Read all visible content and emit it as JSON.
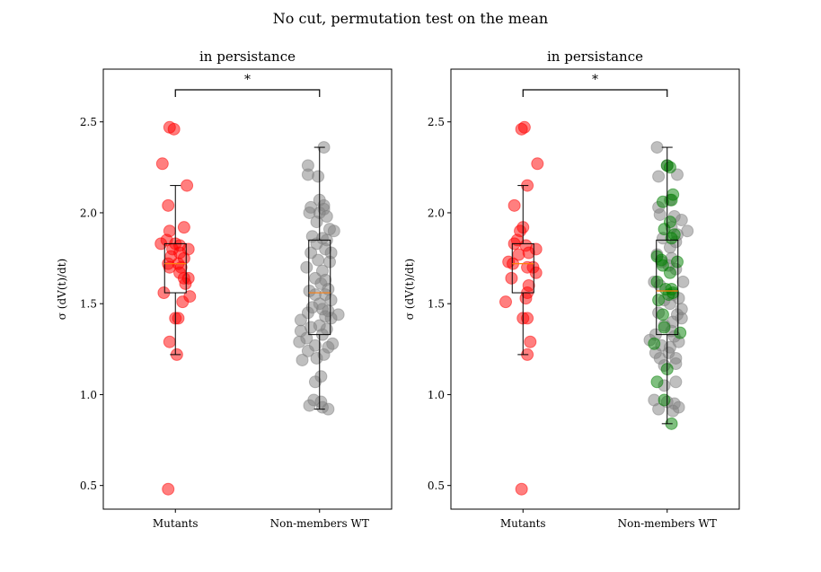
{
  "figure": {
    "title": "No cut, permutation test on the mean"
  },
  "colors": {
    "mutant": "#ff0000",
    "wt": "#808080",
    "wt_highlight": "#008000",
    "median": "#ff7f0e",
    "box": "#000000"
  },
  "chart_data": [
    {
      "type": "scatter",
      "title": "in persistance",
      "ylabel": "σ (dV(t)/dt)",
      "xlabel": "",
      "categories": [
        "Mutants",
        "Non-members WT"
      ],
      "ylim": [
        0.37,
        2.79
      ],
      "yticks": [
        0.5,
        1.0,
        1.5,
        2.0,
        2.5
      ],
      "ytick_labels": [
        "0.5",
        "1.0",
        "1.5",
        "2.0",
        "2.5"
      ],
      "grid": false,
      "significance": "*",
      "boxes": [
        {
          "category": "Mutants",
          "whisker_low": 1.22,
          "q1": 1.56,
          "median": 1.72,
          "q3": 1.83,
          "whisker_high": 2.15
        },
        {
          "category": "Non-members WT",
          "whisker_low": 0.92,
          "q1": 1.33,
          "median": 1.56,
          "q3": 1.85,
          "whisker_high": 2.36
        }
      ],
      "series": [
        {
          "category": "Mutants",
          "color": "#ff0000",
          "points": [
            [
              -0.04,
              2.47
            ],
            [
              -0.01,
              2.46
            ],
            [
              -0.09,
              2.27
            ],
            [
              0.08,
              2.15
            ],
            [
              -0.05,
              2.04
            ],
            [
              0.06,
              1.92
            ],
            [
              -0.04,
              1.9
            ],
            [
              -0.06,
              1.85
            ],
            [
              -0.1,
              1.83
            ],
            [
              0.0,
              1.83
            ],
            [
              0.03,
              1.82
            ],
            [
              -0.02,
              1.8
            ],
            [
              0.09,
              1.8
            ],
            [
              0.03,
              1.78
            ],
            [
              -0.03,
              1.76
            ],
            [
              0.06,
              1.75
            ],
            [
              -0.05,
              1.72
            ],
            [
              0.02,
              1.72
            ],
            [
              -0.04,
              1.7
            ],
            [
              0.04,
              1.7
            ],
            [
              0.03,
              1.67
            ],
            [
              0.06,
              1.64
            ],
            [
              0.09,
              1.64
            ],
            [
              0.07,
              1.61
            ],
            [
              -0.08,
              1.56
            ],
            [
              0.1,
              1.54
            ],
            [
              0.05,
              1.51
            ],
            [
              0.0,
              1.42
            ],
            [
              0.02,
              1.42
            ],
            [
              -0.04,
              1.29
            ],
            [
              0.01,
              1.22
            ],
            [
              -0.05,
              0.48
            ]
          ]
        },
        {
          "category": "Non-members WT",
          "color": "#808080",
          "points": [
            [
              0.03,
              2.36
            ],
            [
              -0.08,
              2.26
            ],
            [
              -0.01,
              2.2
            ],
            [
              -0.08,
              2.21
            ],
            [
              0.0,
              2.07
            ],
            [
              0.03,
              2.04
            ],
            [
              -0.06,
              2.03
            ],
            [
              0.03,
              2.02
            ],
            [
              -0.07,
              2.0
            ],
            [
              0.0,
              2.0
            ],
            [
              0.05,
              1.98
            ],
            [
              -0.02,
              1.95
            ],
            [
              0.07,
              1.91
            ],
            [
              0.1,
              1.9
            ],
            [
              -0.05,
              1.87
            ],
            [
              0.02,
              1.86
            ],
            [
              0.05,
              1.85
            ],
            [
              -0.02,
              1.83
            ],
            [
              0.04,
              1.8
            ],
            [
              0.08,
              1.78
            ],
            [
              -0.06,
              1.78
            ],
            [
              -0.01,
              1.74
            ],
            [
              0.07,
              1.73
            ],
            [
              -0.09,
              1.7
            ],
            [
              0.02,
              1.68
            ],
            [
              -0.03,
              1.64
            ],
            [
              0.04,
              1.63
            ],
            [
              0.01,
              1.61
            ],
            [
              0.06,
              1.58
            ],
            [
              -0.07,
              1.57
            ],
            [
              -0.03,
              1.55
            ],
            [
              0.04,
              1.55
            ],
            [
              0.08,
              1.52
            ],
            [
              0.0,
              1.5
            ],
            [
              -0.05,
              1.48
            ],
            [
              0.02,
              1.47
            ],
            [
              0.06,
              1.46
            ],
            [
              -0.08,
              1.45
            ],
            [
              0.13,
              1.44
            ],
            [
              0.04,
              1.43
            ],
            [
              0.08,
              1.42
            ],
            [
              -0.13,
              1.41
            ],
            [
              0.0,
              1.38
            ],
            [
              -0.06,
              1.37
            ],
            [
              0.05,
              1.36
            ],
            [
              -0.13,
              1.35
            ],
            [
              0.02,
              1.33
            ],
            [
              -0.09,
              1.31
            ],
            [
              -0.14,
              1.29
            ],
            [
              0.09,
              1.28
            ],
            [
              -0.03,
              1.27
            ],
            [
              0.06,
              1.26
            ],
            [
              -0.08,
              1.24
            ],
            [
              0.03,
              1.22
            ],
            [
              -0.02,
              1.2
            ],
            [
              -0.12,
              1.19
            ],
            [
              0.01,
              1.1
            ],
            [
              -0.03,
              1.07
            ],
            [
              -0.04,
              0.97
            ],
            [
              0.01,
              0.96
            ],
            [
              -0.07,
              0.94
            ],
            [
              0.02,
              0.93
            ],
            [
              0.06,
              0.92
            ]
          ]
        }
      ]
    },
    {
      "type": "scatter",
      "title": "in persistance",
      "ylabel": "σ (dV(t)/dt)",
      "xlabel": "",
      "categories": [
        "Mutants",
        "Non-members WT"
      ],
      "ylim": [
        0.37,
        2.79
      ],
      "yticks": [
        0.5,
        1.0,
        1.5,
        2.0,
        2.5
      ],
      "ytick_labels": [
        "0.5",
        "1.0",
        "1.5",
        "2.0",
        "2.5"
      ],
      "grid": false,
      "significance": "*",
      "boxes": [
        {
          "category": "Mutants",
          "whisker_low": 1.22,
          "q1": 1.56,
          "median": 1.72,
          "q3": 1.83,
          "whisker_high": 2.15
        },
        {
          "category": "Non-members WT",
          "whisker_low": 0.84,
          "q1": 1.33,
          "median": 1.57,
          "q3": 1.85,
          "whisker_high": 2.36
        }
      ],
      "series": [
        {
          "category": "Mutants",
          "color": "#ff0000",
          "points": [
            [
              0.01,
              2.47
            ],
            [
              -0.01,
              2.46
            ],
            [
              0.1,
              2.27
            ],
            [
              0.03,
              2.15
            ],
            [
              -0.06,
              2.04
            ],
            [
              0.0,
              1.92
            ],
            [
              -0.02,
              1.9
            ],
            [
              -0.04,
              1.85
            ],
            [
              -0.06,
              1.83
            ],
            [
              0.02,
              1.82
            ],
            [
              0.09,
              1.8
            ],
            [
              0.04,
              1.78
            ],
            [
              -0.03,
              1.77
            ],
            [
              -0.1,
              1.73
            ],
            [
              -0.07,
              1.72
            ],
            [
              0.07,
              1.7
            ],
            [
              0.03,
              1.7
            ],
            [
              0.09,
              1.67
            ],
            [
              -0.08,
              1.64
            ],
            [
              0.04,
              1.6
            ],
            [
              0.03,
              1.56
            ],
            [
              0.02,
              1.53
            ],
            [
              -0.12,
              1.51
            ],
            [
              0.03,
              1.42
            ],
            [
              0.0,
              1.42
            ],
            [
              0.05,
              1.29
            ],
            [
              0.03,
              1.22
            ],
            [
              -0.01,
              0.48
            ]
          ]
        },
        {
          "category": "Non-members WT",
          "color": "#808080",
          "points": [
            [
              -0.07,
              2.36
            ],
            [
              0.0,
              2.26
            ],
            [
              0.07,
              2.21
            ],
            [
              -0.06,
              2.2
            ],
            [
              0.02,
              2.07
            ],
            [
              -0.06,
              2.03
            ],
            [
              -0.05,
              1.99
            ],
            [
              0.05,
              1.98
            ],
            [
              0.1,
              1.96
            ],
            [
              0.03,
              1.92
            ],
            [
              0.14,
              1.9
            ],
            [
              0.07,
              1.88
            ],
            [
              -0.03,
              1.86
            ],
            [
              0.06,
              1.84
            ],
            [
              0.02,
              1.81
            ],
            [
              -0.07,
              1.77
            ],
            [
              0.03,
              1.75
            ],
            [
              -0.04,
              1.73
            ],
            [
              0.01,
              1.71
            ],
            [
              0.06,
              1.69
            ],
            [
              0.11,
              1.62
            ],
            [
              -0.09,
              1.62
            ],
            [
              -0.05,
              1.6
            ],
            [
              0.04,
              1.55
            ],
            [
              0.08,
              1.53
            ],
            [
              -0.02,
              1.52
            ],
            [
              0.02,
              1.5
            ],
            [
              0.1,
              1.47
            ],
            [
              -0.06,
              1.45
            ],
            [
              0.07,
              1.44
            ],
            [
              0.1,
              1.42
            ],
            [
              0.04,
              1.4
            ],
            [
              -0.02,
              1.38
            ],
            [
              0.03,
              1.35
            ],
            [
              -0.08,
              1.33
            ],
            [
              0.05,
              1.32
            ],
            [
              -0.12,
              1.3
            ],
            [
              0.08,
              1.29
            ],
            [
              -0.04,
              1.27
            ],
            [
              0.02,
              1.26
            ],
            [
              -0.08,
              1.23
            ],
            [
              0.01,
              1.23
            ],
            [
              0.06,
              1.2
            ],
            [
              -0.05,
              1.2
            ],
            [
              0.06,
              1.17
            ],
            [
              -0.02,
              1.16
            ],
            [
              0.06,
              1.07
            ],
            [
              -0.02,
              1.05
            ],
            [
              -0.09,
              0.97
            ],
            [
              0.0,
              0.96
            ],
            [
              0.05,
              0.95
            ],
            [
              0.08,
              0.93
            ],
            [
              -0.06,
              0.92
            ],
            [
              0.04,
              0.91
            ]
          ]
        },
        {
          "category": "Non-members WT",
          "color": "#008000",
          "points": [
            [
              0.0,
              2.26
            ],
            [
              0.02,
              2.25
            ],
            [
              0.04,
              2.1
            ],
            [
              0.03,
              2.07
            ],
            [
              -0.03,
              2.06
            ],
            [
              0.02,
              1.95
            ],
            [
              -0.02,
              1.91
            ],
            [
              0.05,
              1.88
            ],
            [
              0.03,
              1.86
            ],
            [
              -0.07,
              1.76
            ],
            [
              -0.04,
              1.74
            ],
            [
              0.07,
              1.73
            ],
            [
              -0.03,
              1.71
            ],
            [
              0.02,
              1.67
            ],
            [
              -0.07,
              1.62
            ],
            [
              0.03,
              1.58
            ],
            [
              -0.01,
              1.58
            ],
            [
              0.04,
              1.56
            ],
            [
              0.01,
              1.55
            ],
            [
              -0.06,
              1.52
            ],
            [
              -0.03,
              1.44
            ],
            [
              -0.02,
              1.37
            ],
            [
              0.09,
              1.34
            ],
            [
              -0.09,
              1.28
            ],
            [
              0.0,
              1.14
            ],
            [
              -0.07,
              1.07
            ],
            [
              -0.02,
              0.97
            ],
            [
              0.03,
              0.84
            ]
          ]
        }
      ]
    }
  ]
}
